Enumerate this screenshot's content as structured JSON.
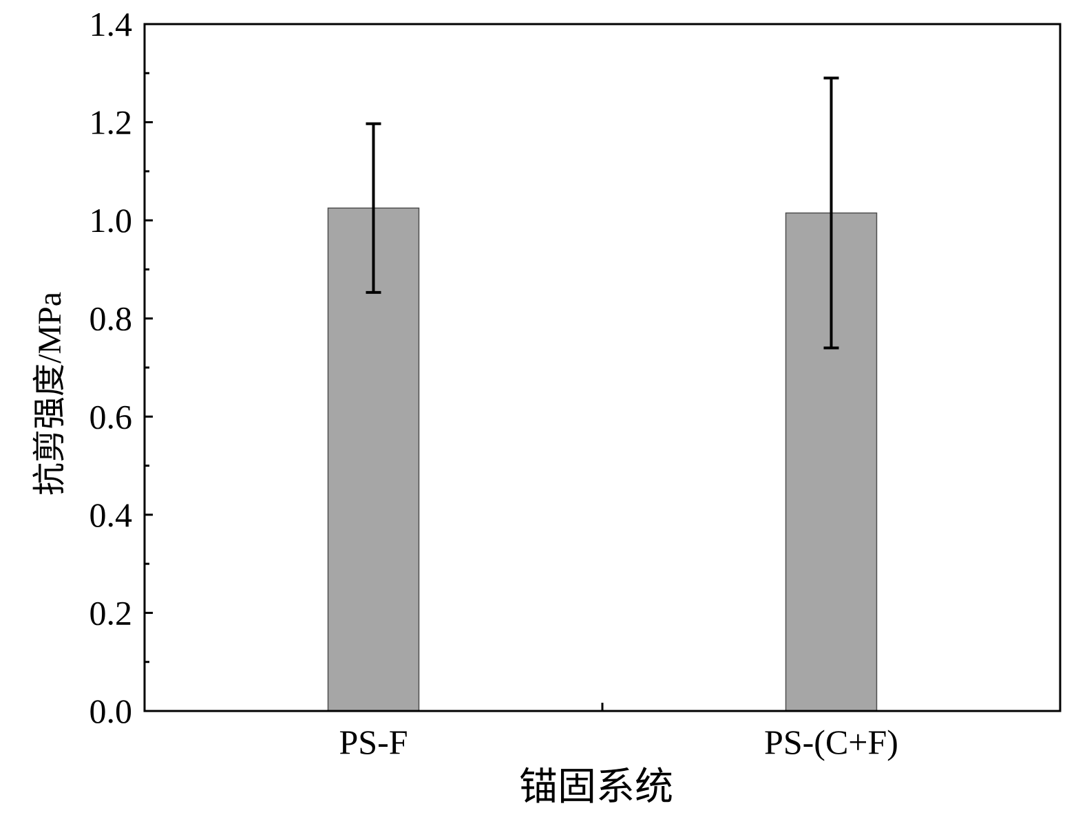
{
  "chart_data": {
    "type": "bar",
    "title": "",
    "xlabel": "锚固系统",
    "ylabel": "抗剪强度/MPa",
    "categories": [
      "PS-F",
      "PS-(C+F)"
    ],
    "values": [
      1.025,
      1.015
    ],
    "error_low": [
      0.853,
      0.74
    ],
    "error_high": [
      1.197,
      1.29
    ],
    "ylim": [
      0,
      1.4
    ],
    "yticks": [
      0.0,
      0.2,
      0.4,
      0.6,
      0.8,
      1.0,
      1.2,
      1.4
    ],
    "ytick_labels": [
      "0.0",
      "0.2",
      "0.4",
      "0.6",
      "0.8",
      "1.0",
      "1.2",
      "1.4"
    ],
    "grid": false,
    "legend": "none",
    "bar_color": "#a6a6a6",
    "bar_edge_color": "#4d4d4d",
    "error_bar_color": "#000000"
  }
}
